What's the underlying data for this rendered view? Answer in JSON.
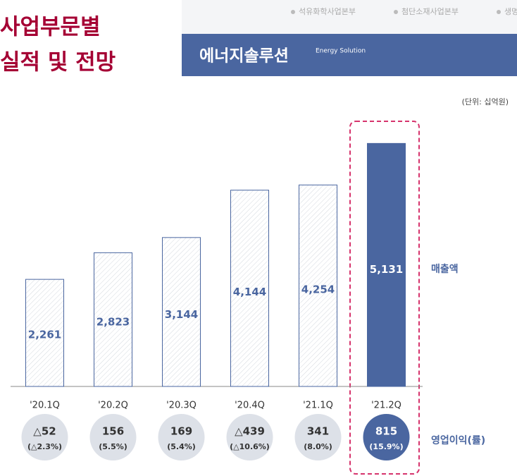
{
  "header": {
    "title_lines": [
      "사업부문별",
      "실적 및 전망"
    ],
    "tabs": [
      "석유화학사업본부",
      "첨단소재사업본부",
      "생명"
    ],
    "banner": "에너지솔루션",
    "banner_sub": "Energy Solution"
  },
  "chart_data": {
    "type": "bar",
    "unit": "(단위: 십억원)",
    "value_name": "매출액",
    "categories": [
      "'20.1Q",
      "'20.2Q",
      "'20.3Q",
      "'20.4Q",
      "'21.1Q",
      "'21.2Q"
    ],
    "values": [
      2261,
      2823,
      3144,
      4144,
      4254,
      5131
    ],
    "value_labels": [
      "2,261",
      "2,823",
      "3,144",
      "4,144",
      "4,254",
      "5,131"
    ],
    "colors": [
      "#ffffff",
      "#ffffff",
      "#ffffff",
      "#ffffff",
      "#ffffff",
      "#4a66a0"
    ],
    "ylim": [
      0,
      6000
    ],
    "operating_profit": {
      "name": "영업이익(률)",
      "labels": [
        "△52",
        "156",
        "169",
        "△439",
        "341",
        "815"
      ],
      "margins": [
        "(△2.3%)",
        "(5.5%)",
        "(5.4%)",
        "(△10.6%)",
        "(8.0%)",
        "(15.9%)"
      ]
    }
  }
}
